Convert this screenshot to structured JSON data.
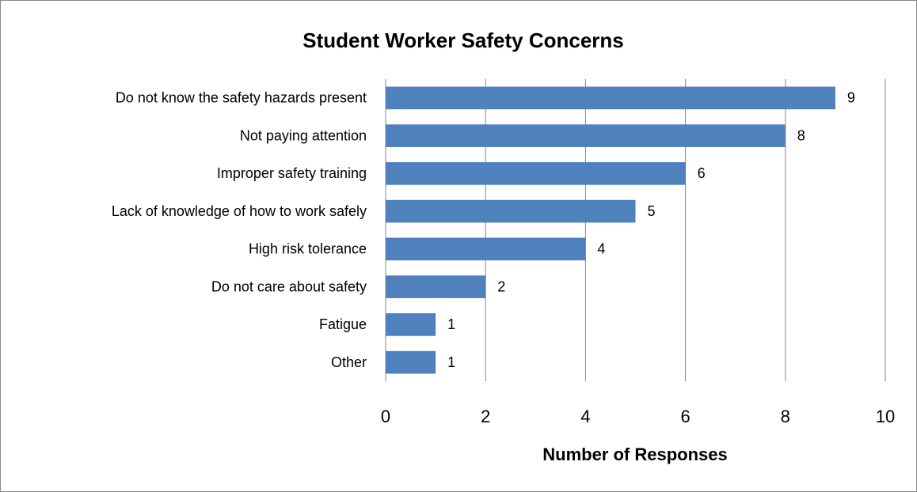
{
  "chart_data": {
    "type": "bar",
    "orientation": "horizontal",
    "title": "Student Worker Safety Concerns",
    "x_label": "Number of Responses",
    "categories": [
      "Do not know the safety hazards present",
      "Not paying attention",
      "Improper safety training",
      "Lack of knowledge of how to work safely",
      "High risk tolerance",
      "Do not care about safety",
      "Fatigue",
      "Other"
    ],
    "values": [
      9,
      8,
      6,
      5,
      4,
      2,
      1,
      1
    ],
    "color": "#4f81bd",
    "xlim": [
      0,
      10
    ],
    "xticks": [
      0,
      2,
      4,
      6,
      8,
      10
    ],
    "grid": true
  }
}
